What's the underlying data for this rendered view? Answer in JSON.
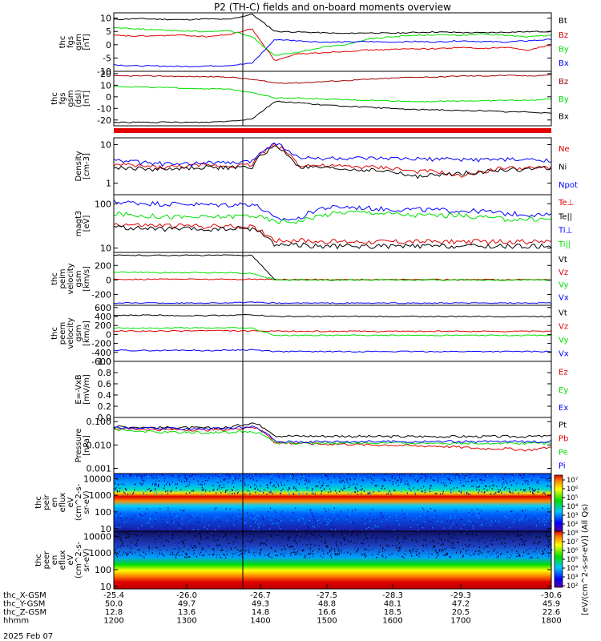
{
  "title": "P2 (TH-C) fields and on-board moments overview",
  "colors": {
    "black": "#000000",
    "red": "#e00000",
    "green": "#00e000",
    "blue": "#0000ff",
    "darkred": "#a00000"
  },
  "chart_data": [
    {
      "type": "line",
      "ylabel": [
        "thc",
        "fgs",
        "gsm",
        "[nT]"
      ],
      "ylim": [
        -10,
        12
      ],
      "yticks": [
        "10",
        "5",
        "0",
        "-5",
        "-10"
      ],
      "series": [
        {
          "name": "Bt",
          "color": "black",
          "values": [
            9.5,
            9.8,
            9.6,
            9.4,
            9.7,
            9.5,
            11.5,
            5,
            4.8,
            4.5,
            4.2,
            4.5,
            4.3,
            4.6,
            4.8,
            4.6,
            4.5,
            4.7,
            4.9,
            5
          ]
        },
        {
          "name": "Bz",
          "color": "red",
          "values": [
            3.5,
            3.2,
            3.4,
            3.6,
            3.0,
            3.8,
            6,
            -6,
            -3.5,
            -3,
            -2.5,
            -2,
            -1.8,
            -1.5,
            -1.5,
            -1,
            -1.5,
            -1,
            -2,
            0
          ]
        },
        {
          "name": "By",
          "color": "green",
          "values": [
            6.5,
            6.0,
            5.5,
            5.2,
            5.0,
            5.3,
            3,
            -4,
            -3,
            -1,
            0,
            2,
            3,
            3.5,
            3.8,
            3.5,
            4,
            3.5,
            3,
            3.5
          ]
        },
        {
          "name": "Bx",
          "color": "blue",
          "values": [
            -7.5,
            -8,
            -8,
            -8.2,
            -8,
            -7.8,
            -7,
            2,
            1.5,
            1,
            1,
            1.2,
            1,
            1.2,
            1,
            1.5,
            1.2,
            1,
            1.5,
            2
          ]
        }
      ]
    },
    {
      "type": "line",
      "ylabel": [
        "thc",
        "fgs",
        "gsm",
        "(dsl)",
        "[nT]"
      ],
      "ylim": [
        -25,
        22
      ],
      "yticks": [
        "20",
        "10",
        "0",
        "-10",
        "-20"
      ],
      "series": [
        {
          "name": "Bz",
          "color": "darkred",
          "values": [
            18,
            18,
            18,
            17.5,
            17.5,
            17,
            15,
            12,
            12,
            13,
            14,
            15,
            16,
            17,
            17,
            18,
            18,
            18.5,
            18,
            19
          ]
        },
        {
          "name": "By",
          "color": "green",
          "values": [
            9,
            8.5,
            8,
            7.5,
            7,
            6.5,
            4,
            -1,
            -1,
            -2,
            -2.5,
            -3,
            -3.5,
            -4,
            -4,
            -3.5,
            -3.5,
            -3,
            -3,
            -2
          ]
        },
        {
          "name": "Bx",
          "color": "black",
          "values": [
            -22,
            -22,
            -22,
            -22,
            -22,
            -21,
            -19,
            -4,
            -5,
            -7,
            -8,
            -9,
            -10,
            -11,
            -11,
            -12,
            -12,
            -13,
            -13,
            -14
          ]
        }
      ]
    },
    {
      "type": "line",
      "ylabel": [
        "Density",
        "[cm-3]"
      ],
      "scale": "log",
      "ylim": [
        0.5,
        15
      ],
      "yticks": [
        "10",
        "1"
      ],
      "series": [
        {
          "name": "Ne",
          "color": "red",
          "values": [
            3,
            2.8,
            2.6,
            2.7,
            2.9,
            2.8,
            3,
            10,
            3,
            2.8,
            2.7,
            2.6,
            2.5,
            2,
            2,
            1.5,
            2,
            2.5,
            2.4,
            2.6
          ]
        },
        {
          "name": "Ni",
          "color": "black",
          "values": [
            2.5,
            2.4,
            2.3,
            2.4,
            2.6,
            2.5,
            2.6,
            9,
            2.6,
            2.5,
            2.3,
            2.2,
            2,
            1.5,
            1.6,
            1.8,
            2,
            2.2,
            2.3,
            2.5
          ]
        },
        {
          "name": "Npot",
          "color": "blue",
          "values": [
            4,
            3.5,
            3.2,
            3,
            3.5,
            3.3,
            3.6,
            11,
            4.5,
            4.4,
            4.4,
            4.3,
            4.3,
            4.2,
            4.2,
            4.1,
            4.1,
            4.1,
            4,
            4
          ]
        }
      ]
    },
    {
      "type": "line",
      "ylabel": [
        "magt3",
        "[eV]"
      ],
      "scale": "log",
      "ylim": [
        8,
        160
      ],
      "yticks": [
        "100",
        "10"
      ],
      "series": [
        {
          "name": "Te⊥",
          "color": "red",
          "values": [
            35,
            33,
            32,
            32,
            31,
            31,
            30,
            15,
            15,
            14,
            14,
            14,
            14,
            14,
            14,
            14,
            14,
            14,
            14,
            14
          ]
        },
        {
          "name": "Te||",
          "color": "black",
          "values": [
            30,
            28,
            27,
            27,
            26,
            27,
            28,
            12,
            12,
            11,
            11,
            11,
            11,
            11,
            11,
            11,
            11,
            11,
            11,
            11
          ]
        },
        {
          "name": "Ti⊥",
          "color": "blue",
          "values": [
            110,
            105,
            100,
            100,
            95,
            95,
            100,
            45,
            45,
            80,
            85,
            80,
            75,
            75,
            72,
            70,
            68,
            60,
            58,
            55
          ]
        },
        {
          "name": "Ti||",
          "color": "green",
          "values": [
            60,
            55,
            52,
            50,
            50,
            52,
            55,
            40,
            40,
            55,
            65,
            65,
            60,
            55,
            55,
            55,
            50,
            45,
            45,
            45
          ]
        }
      ]
    },
    {
      "type": "line",
      "ylabel": [
        "thc",
        "peim",
        "velocity",
        "gsm",
        "[km/s]"
      ],
      "ylim": [
        -350,
        380
      ],
      "yticks": [
        "200",
        "0",
        "-200"
      ],
      "series": [
        {
          "name": "Vt",
          "color": "black",
          "values": [
            340,
            340,
            340,
            340,
            340,
            340,
            340,
            0,
            0,
            0,
            0,
            0,
            0,
            0,
            0,
            0,
            0,
            0,
            0,
            0
          ]
        },
        {
          "name": "Vz",
          "color": "red",
          "values": [
            10,
            8,
            10,
            12,
            10,
            8,
            10,
            5,
            5,
            5,
            5,
            5,
            5,
            5,
            5,
            5,
            5,
            5,
            5,
            5
          ]
        },
        {
          "name": "Vy",
          "color": "green",
          "values": [
            110,
            105,
            100,
            100,
            100,
            100,
            90,
            0,
            0,
            0,
            0,
            0,
            0,
            0,
            0,
            0,
            0,
            0,
            0,
            0
          ]
        },
        {
          "name": "Vx",
          "color": "blue",
          "values": [
            -320,
            -315,
            -318,
            -320,
            -318,
            -315,
            -310,
            -320,
            -320,
            -320,
            -320,
            -320,
            -320,
            -320,
            -320,
            -320,
            -320,
            -320,
            -320,
            -320
          ]
        }
      ]
    },
    {
      "type": "line",
      "ylabel": [
        "thc",
        "peem",
        "velocity",
        "gsm",
        "[km/s]"
      ],
      "ylim": [
        -600,
        650
      ],
      "yticks": [
        "600",
        "400",
        "200",
        "0",
        "-200",
        "-400",
        "-600"
      ],
      "series": [
        {
          "name": "Vt",
          "color": "black",
          "values": [
            420,
            430,
            430,
            420,
            420,
            430,
            440,
            400,
            400,
            400,
            400,
            400,
            400,
            400,
            400,
            400,
            400,
            400,
            400,
            400
          ]
        },
        {
          "name": "Vz",
          "color": "red",
          "values": [
            80,
            70,
            75,
            80,
            85,
            80,
            75,
            70,
            70,
            70,
            70,
            70,
            70,
            70,
            70,
            70,
            70,
            70,
            70,
            70
          ]
        },
        {
          "name": "Vy",
          "color": "green",
          "values": [
            150,
            140,
            140,
            150,
            140,
            150,
            140,
            -20,
            -20,
            -20,
            -20,
            -20,
            -20,
            -20,
            -20,
            -20,
            -20,
            -20,
            -20,
            -20
          ]
        },
        {
          "name": "Vx",
          "color": "blue",
          "values": [
            -350,
            -360,
            -360,
            -350,
            -360,
            -350,
            -340,
            -380,
            -380,
            -380,
            -380,
            -380,
            -380,
            -380,
            -380,
            -380,
            -380,
            -380,
            -380,
            -380
          ]
        }
      ]
    },
    {
      "type": "line",
      "ylabel": [
        "E=-VxB",
        "[mV/m]"
      ],
      "ylim": [
        0,
        1
      ],
      "yticks": [
        "1.0",
        "0.8",
        "0.6",
        "0.4",
        "0.2",
        "0.0"
      ],
      "series": [
        {
          "name": "Ez",
          "color": "red",
          "values": []
        },
        {
          "name": "Ey",
          "color": "green",
          "values": []
        },
        {
          "name": "Ex",
          "color": "blue",
          "values": []
        }
      ]
    },
    {
      "type": "line",
      "ylabel": [
        "Pressure",
        "[nPa]"
      ],
      "scale": "log",
      "ylim": [
        0.0006,
        0.15
      ],
      "yticks": [
        "0.100",
        "0.010",
        "0.001"
      ],
      "series": [
        {
          "name": "Pt",
          "color": "black",
          "values": [
            0.06,
            0.058,
            0.055,
            0.055,
            0.053,
            0.055,
            0.09,
            0.025,
            0.024,
            0.024,
            0.024,
            0.023,
            0.023,
            0.023,
            0.023,
            0.023,
            0.023,
            0.023,
            0.023,
            0.024
          ]
        },
        {
          "name": "Pb",
          "color": "red",
          "values": [
            0.05,
            0.048,
            0.045,
            0.045,
            0.044,
            0.045,
            0.06,
            0.012,
            0.012,
            0.011,
            0.011,
            0.01,
            0.01,
            0.009,
            0.009,
            0.008,
            0.007,
            0.007,
            0.006,
            0.008
          ]
        },
        {
          "name": "Pe",
          "color": "green",
          "values": [
            0.045,
            0.04,
            0.035,
            0.035,
            0.034,
            0.035,
            0.04,
            0.012,
            0.012,
            0.012,
            0.012,
            0.012,
            0.012,
            0.012,
            0.012,
            0.012,
            0.012,
            0.012,
            0.012,
            0.012
          ]
        },
        {
          "name": "Pi",
          "color": "blue",
          "values": [
            0.055,
            0.052,
            0.05,
            0.05,
            0.05,
            0.05,
            0.06,
            0.014,
            0.014,
            0.014,
            0.014,
            0.014,
            0.014,
            0.014,
            0.014,
            0.014,
            0.014,
            0.014,
            0.014,
            0.014
          ]
        }
      ]
    },
    {
      "type": "heatmap",
      "ylabel": [
        "thc",
        "peir",
        "en",
        "eflux",
        "eV",
        "(cm^2-s-",
        "sr-eV)"
      ],
      "scale": "log",
      "ylim": [
        7,
        20000
      ],
      "yticks": [
        "10000",
        "1000",
        "100",
        "10"
      ]
    },
    {
      "type": "heatmap",
      "ylabel": [
        "thc",
        "peer",
        "en",
        "eflux",
        "eV",
        "(cm^2-s-",
        "sr-eV)"
      ],
      "scale": "log",
      "ylim": [
        7,
        20000
      ],
      "yticks": [
        "10000",
        "1000",
        "100",
        "10"
      ]
    }
  ],
  "colorbar": {
    "ticks": [
      "10⁷",
      "10⁶",
      "10⁵",
      "10⁴",
      "10³",
      "10²",
      "10⁸",
      "10⁷",
      "10⁶",
      "10⁵",
      "10⁴",
      "10³",
      "10²"
    ],
    "label": "[eV/(cm^2-s-sr-eV)] (All Qs)"
  },
  "xaxis": {
    "rows": [
      {
        "label": "thc_X-GSM",
        "values": [
          "-25.4",
          "-26.0",
          "-26.7",
          "-27.5",
          "-28.3",
          "-29.3",
          "-30.6"
        ]
      },
      {
        "label": "thc_Y-GSM",
        "values": [
          "50.0",
          "49.7",
          "49.3",
          "48.8",
          "48.1",
          "47.2",
          "45.9"
        ]
      },
      {
        "label": "thc_Z-GSM",
        "values": [
          "12.8",
          "13.6",
          "14.8",
          "16.6",
          "18.5",
          "20.5",
          "22.6"
        ]
      },
      {
        "label": "hhmm",
        "values": [
          "1200",
          "1300",
          "1400",
          "1500",
          "1600",
          "1700",
          "1800"
        ]
      }
    ],
    "date": "2025 Feb 07"
  }
}
